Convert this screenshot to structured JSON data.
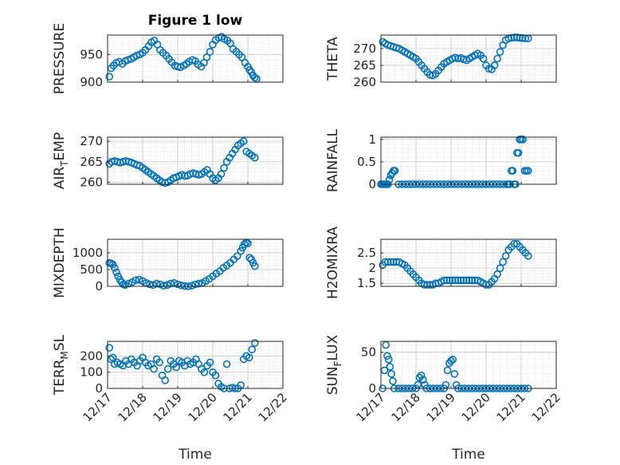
{
  "figure": {
    "title": "Figure 1 low"
  },
  "colors": {
    "marker": "#0072BD",
    "axis": "#262626",
    "grid": "#d0d0d0"
  },
  "chart_data": [
    {
      "id": "pressure",
      "type": "scatter",
      "ylabel": "PRESSURE",
      "ylabel_sub": "",
      "yticks": [
        900,
        950
      ],
      "ylim": [
        900,
        985
      ],
      "xlim": [
        0,
        5
      ],
      "grid": true,
      "show_xticklabels": false,
      "x": [
        0.05,
        0.1,
        0.17,
        0.25,
        0.33,
        0.42,
        0.5,
        0.58,
        0.67,
        0.75,
        0.83,
        0.92,
        1.0,
        1.08,
        1.17,
        1.25,
        1.33,
        1.42,
        1.5,
        1.58,
        1.67,
        1.75,
        1.83,
        1.92,
        2.0,
        2.08,
        2.17,
        2.25,
        2.33,
        2.42,
        2.5,
        2.58,
        2.67,
        2.75,
        2.83,
        2.92,
        3.0,
        3.08,
        3.17,
        3.25,
        3.33,
        3.42,
        3.5,
        3.58,
        3.67,
        3.75,
        3.83,
        3.92,
        4.0,
        4.05,
        4.1,
        4.15,
        4.2,
        4.25
      ],
      "y": [
        910,
        925,
        930,
        935,
        937,
        933,
        938,
        940,
        942,
        945,
        948,
        950,
        953,
        958,
        965,
        972,
        975,
        968,
        958,
        953,
        948,
        942,
        936,
        930,
        928,
        927,
        930,
        933,
        937,
        940,
        938,
        932,
        928,
        935,
        945,
        955,
        968,
        976,
        980,
        982,
        978,
        975,
        970,
        960,
        955,
        950,
        945,
        935,
        928,
        922,
        918,
        912,
        908,
        906
      ]
    },
    {
      "id": "theta",
      "type": "scatter",
      "ylabel": "THETA",
      "ylabel_sub": "",
      "yticks": [
        260,
        265,
        270
      ],
      "ylim": [
        260,
        274
      ],
      "xlim": [
        0,
        5
      ],
      "grid": true,
      "show_xticklabels": false,
      "x": [
        0.05,
        0.12,
        0.2,
        0.28,
        0.36,
        0.44,
        0.52,
        0.6,
        0.68,
        0.76,
        0.84,
        0.92,
        1.0,
        1.08,
        1.16,
        1.24,
        1.32,
        1.4,
        1.48,
        1.56,
        1.64,
        1.72,
        1.8,
        1.88,
        1.96,
        2.04,
        2.12,
        2.2,
        2.28,
        2.36,
        2.44,
        2.52,
        2.6,
        2.68,
        2.76,
        2.84,
        2.92,
        3.0,
        3.08,
        3.16,
        3.24,
        3.32,
        3.4,
        3.48,
        3.56,
        3.64,
        3.72,
        3.8,
        3.88,
        3.96,
        4.04,
        4.12,
        4.2
      ],
      "y": [
        272,
        271.5,
        271,
        270.8,
        270.5,
        270.2,
        270,
        269.5,
        269,
        268.5,
        268,
        267.5,
        267,
        266,
        265,
        264,
        263,
        262.2,
        262,
        262.5,
        263.5,
        264.5,
        265.5,
        266,
        266.5,
        267,
        267.3,
        267,
        267.2,
        266.8,
        266.5,
        267,
        267.5,
        268,
        268.5,
        268,
        267,
        265,
        264,
        263.8,
        265,
        267,
        269,
        271,
        272.5,
        273,
        273.2,
        273.3,
        273.3,
        273.2,
        273.1,
        273,
        273
      ]
    },
    {
      "id": "air-temp",
      "type": "scatter",
      "ylabel": "AIR",
      "ylabel_sub": "T",
      "ylabel_tail": "EMP",
      "yticks": [
        260,
        265,
        270
      ],
      "ylim": [
        259.5,
        271
      ],
      "xlim": [
        0,
        5
      ],
      "grid": true,
      "show_xticklabels": false,
      "x": [
        0.05,
        0.12,
        0.2,
        0.28,
        0.36,
        0.44,
        0.52,
        0.6,
        0.68,
        0.76,
        0.84,
        0.92,
        1.0,
        1.08,
        1.16,
        1.24,
        1.32,
        1.4,
        1.48,
        1.56,
        1.64,
        1.72,
        1.8,
        1.88,
        1.96,
        2.04,
        2.12,
        2.2,
        2.28,
        2.36,
        2.44,
        2.52,
        2.6,
        2.68,
        2.76,
        2.84,
        2.92,
        3.0,
        3.08,
        3.16,
        3.24,
        3.32,
        3.4,
        3.48,
        3.56,
        3.64,
        3.72,
        3.8,
        3.88,
        3.96,
        4.04,
        4.12,
        4.2
      ],
      "y": [
        264.5,
        265,
        265.2,
        265,
        264.8,
        265,
        265.2,
        265,
        264.8,
        264.5,
        264.2,
        264,
        263.5,
        263,
        262.5,
        262,
        261.5,
        261,
        260.5,
        260,
        259.8,
        260,
        260.5,
        261,
        261.2,
        261.5,
        261.8,
        261.5,
        261.6,
        262,
        262.2,
        262,
        261.8,
        262,
        262.5,
        263,
        262,
        261,
        260.5,
        261,
        262,
        263.5,
        265,
        266,
        267,
        268,
        269,
        269.5,
        270,
        267.5,
        267,
        266.5,
        266
      ]
    },
    {
      "id": "rainfall",
      "type": "scatter",
      "ylabel": "RAINFALL",
      "ylabel_sub": "",
      "yticks": [
        0,
        0.5,
        1
      ],
      "ylim": [
        0,
        1.05
      ],
      "xlim": [
        0,
        5
      ],
      "grid": true,
      "show_xticklabels": false,
      "x": [
        0.0,
        0.04,
        0.08,
        0.12,
        0.16,
        0.2,
        0.24,
        0.28,
        0.32,
        0.36,
        0.4,
        0.5,
        0.6,
        0.7,
        0.8,
        0.9,
        1.0,
        1.1,
        1.2,
        1.3,
        1.4,
        1.5,
        1.6,
        1.7,
        1.8,
        1.9,
        2.0,
        2.1,
        2.2,
        2.3,
        2.4,
        2.5,
        2.6,
        2.7,
        2.8,
        2.9,
        3.0,
        3.1,
        3.2,
        3.3,
        3.4,
        3.5,
        3.6,
        3.64,
        3.68,
        3.72,
        3.76,
        3.8,
        3.84,
        3.88,
        3.92,
        3.96,
        4.0,
        4.05,
        4.1,
        4.15,
        4.2
      ],
      "y": [
        0,
        0,
        0,
        0,
        0,
        0,
        0.1,
        0.2,
        0.25,
        0.3,
        0.3,
        0,
        0,
        0,
        0,
        0,
        0,
        0,
        0,
        0,
        0,
        0,
        0,
        0,
        0,
        0,
        0,
        0,
        0,
        0,
        0,
        0,
        0,
        0,
        0,
        0,
        0,
        0,
        0,
        0,
        0,
        0,
        0,
        0,
        0,
        0.3,
        0.3,
        0,
        0,
        0.7,
        0.7,
        1,
        1,
        1,
        0.3,
        0.3,
        0.3
      ]
    },
    {
      "id": "mixdepth",
      "type": "scatter",
      "ylabel": "MIXDEPTH",
      "ylabel_sub": "",
      "yticks": [
        0,
        500,
        1000
      ],
      "ylim": [
        0,
        1400
      ],
      "xlim": [
        0,
        5
      ],
      "grid": true,
      "show_xticklabels": false,
      "x": [
        0.05,
        0.1,
        0.15,
        0.2,
        0.25,
        0.3,
        0.35,
        0.4,
        0.45,
        0.5,
        0.6,
        0.7,
        0.8,
        0.9,
        1.0,
        1.1,
        1.2,
        1.3,
        1.4,
        1.5,
        1.6,
        1.7,
        1.8,
        1.9,
        2.0,
        2.1,
        2.2,
        2.3,
        2.4,
        2.5,
        2.6,
        2.7,
        2.8,
        2.9,
        3.0,
        3.1,
        3.2,
        3.3,
        3.4,
        3.5,
        3.6,
        3.7,
        3.8,
        3.85,
        3.9,
        3.95,
        4.0,
        4.05,
        4.1,
        4.15,
        4.2
      ],
      "y": [
        700,
        680,
        650,
        550,
        420,
        300,
        200,
        120,
        60,
        40,
        80,
        120,
        180,
        200,
        160,
        100,
        60,
        40,
        80,
        60,
        20,
        40,
        80,
        100,
        60,
        30,
        10,
        0,
        20,
        60,
        80,
        100,
        160,
        220,
        300,
        380,
        450,
        550,
        620,
        700,
        800,
        900,
        1050,
        1150,
        1250,
        1300,
        1280,
        850,
        800,
        700,
        600
      ]
    },
    {
      "id": "h2omixra",
      "type": "scatter",
      "ylabel": "H2OMIXRA",
      "ylabel_sub": "",
      "yticks": [
        1.5,
        2,
        2.5
      ],
      "ylim": [
        1.4,
        2.95
      ],
      "xlim": [
        0,
        5
      ],
      "grid": true,
      "show_xticklabels": false,
      "x": [
        0.05,
        0.12,
        0.2,
        0.28,
        0.36,
        0.44,
        0.52,
        0.6,
        0.68,
        0.76,
        0.84,
        0.92,
        1.0,
        1.08,
        1.16,
        1.24,
        1.32,
        1.4,
        1.48,
        1.56,
        1.64,
        1.72,
        1.8,
        1.88,
        1.96,
        2.04,
        2.12,
        2.2,
        2.28,
        2.36,
        2.44,
        2.52,
        2.6,
        2.68,
        2.76,
        2.84,
        2.92,
        3.0,
        3.08,
        3.16,
        3.24,
        3.32,
        3.4,
        3.48,
        3.56,
        3.64,
        3.72,
        3.8,
        3.88,
        3.96,
        4.04,
        4.12,
        4.2
      ],
      "y": [
        2.1,
        2.2,
        2.2,
        2.2,
        2.2,
        2.2,
        2.2,
        2.15,
        2.1,
        2.0,
        1.9,
        1.8,
        1.7,
        1.6,
        1.5,
        1.45,
        1.45,
        1.45,
        1.45,
        1.5,
        1.5,
        1.55,
        1.6,
        1.6,
        1.6,
        1.6,
        1.6,
        1.6,
        1.6,
        1.6,
        1.6,
        1.6,
        1.6,
        1.6,
        1.6,
        1.55,
        1.5,
        1.45,
        1.45,
        1.55,
        1.65,
        1.8,
        2.0,
        2.2,
        2.4,
        2.6,
        2.7,
        2.8,
        2.8,
        2.7,
        2.6,
        2.5,
        2.4
      ]
    },
    {
      "id": "terr-msl",
      "type": "scatter",
      "ylabel": "TERR",
      "ylabel_sub": "M",
      "ylabel_tail": "SL",
      "yticks": [
        0,
        100,
        200
      ],
      "ylim": [
        0,
        290
      ],
      "xlim": [
        0,
        5
      ],
      "grid": true,
      "show_xticklabels": true,
      "x": [
        0.05,
        0.1,
        0.15,
        0.2,
        0.28,
        0.36,
        0.44,
        0.52,
        0.6,
        0.68,
        0.76,
        0.84,
        0.92,
        1.0,
        1.08,
        1.16,
        1.24,
        1.32,
        1.4,
        1.48,
        1.56,
        1.64,
        1.72,
        1.8,
        1.88,
        1.96,
        2.04,
        2.12,
        2.2,
        2.28,
        2.36,
        2.44,
        2.52,
        2.6,
        2.68,
        2.76,
        2.84,
        2.92,
        3.0,
        3.08,
        3.16,
        3.24,
        3.32,
        3.4,
        3.48,
        3.56,
        3.64,
        3.72,
        3.8,
        3.88,
        3.96,
        4.04,
        4.12,
        4.2
      ],
      "y": [
        250,
        180,
        190,
        150,
        160,
        150,
        140,
        170,
        150,
        180,
        160,
        140,
        170,
        190,
        160,
        140,
        150,
        120,
        180,
        160,
        80,
        50,
        120,
        170,
        150,
        130,
        170,
        160,
        140,
        170,
        150,
        160,
        180,
        150,
        120,
        100,
        140,
        160,
        100,
        80,
        30,
        10,
        0,
        150,
        0,
        5,
        0,
        0,
        20,
        180,
        200,
        190,
        240,
        280
      ]
    },
    {
      "id": "sun-flux",
      "type": "scatter",
      "ylabel": "SUN",
      "ylabel_sub": "F",
      "ylabel_tail": "LUX",
      "yticks": [
        0,
        50
      ],
      "ylim": [
        0,
        65
      ],
      "xlim": [
        0,
        5
      ],
      "grid": true,
      "show_xticklabels": true,
      "x": [
        0.05,
        0.1,
        0.14,
        0.18,
        0.22,
        0.26,
        0.3,
        0.34,
        0.38,
        0.5,
        0.6,
        0.7,
        0.8,
        0.9,
        1.0,
        1.05,
        1.1,
        1.15,
        1.2,
        1.25,
        1.3,
        1.4,
        1.5,
        1.6,
        1.7,
        1.8,
        1.85,
        1.9,
        1.95,
        2.0,
        2.05,
        2.1,
        2.15,
        2.2,
        2.3,
        2.4,
        2.5,
        2.6,
        2.7,
        2.8,
        2.9,
        3.0,
        3.1,
        3.2,
        3.3,
        3.4,
        3.5,
        3.6,
        3.7,
        3.8,
        3.9,
        4.0,
        4.1,
        4.2
      ],
      "y": [
        0,
        25,
        60,
        45,
        40,
        30,
        20,
        10,
        0,
        0,
        0,
        0,
        0,
        0,
        0,
        5,
        15,
        18,
        12,
        5,
        0,
        0,
        0,
        0,
        0,
        0,
        5,
        25,
        35,
        38,
        40,
        20,
        5,
        0,
        0,
        0,
        0,
        0,
        0,
        0,
        0,
        0,
        0,
        0,
        0,
        0,
        0,
        0,
        0,
        0,
        0,
        0,
        0,
        0
      ]
    }
  ],
  "xticks": [
    {
      "v": 0,
      "label": "12/17"
    },
    {
      "v": 1,
      "label": "12/18"
    },
    {
      "v": 2,
      "label": "12/19"
    },
    {
      "v": 3,
      "label": "12/20"
    },
    {
      "v": 4,
      "label": "12/21"
    },
    {
      "v": 5,
      "label": "12/22"
    }
  ],
  "xlabel": "Time"
}
